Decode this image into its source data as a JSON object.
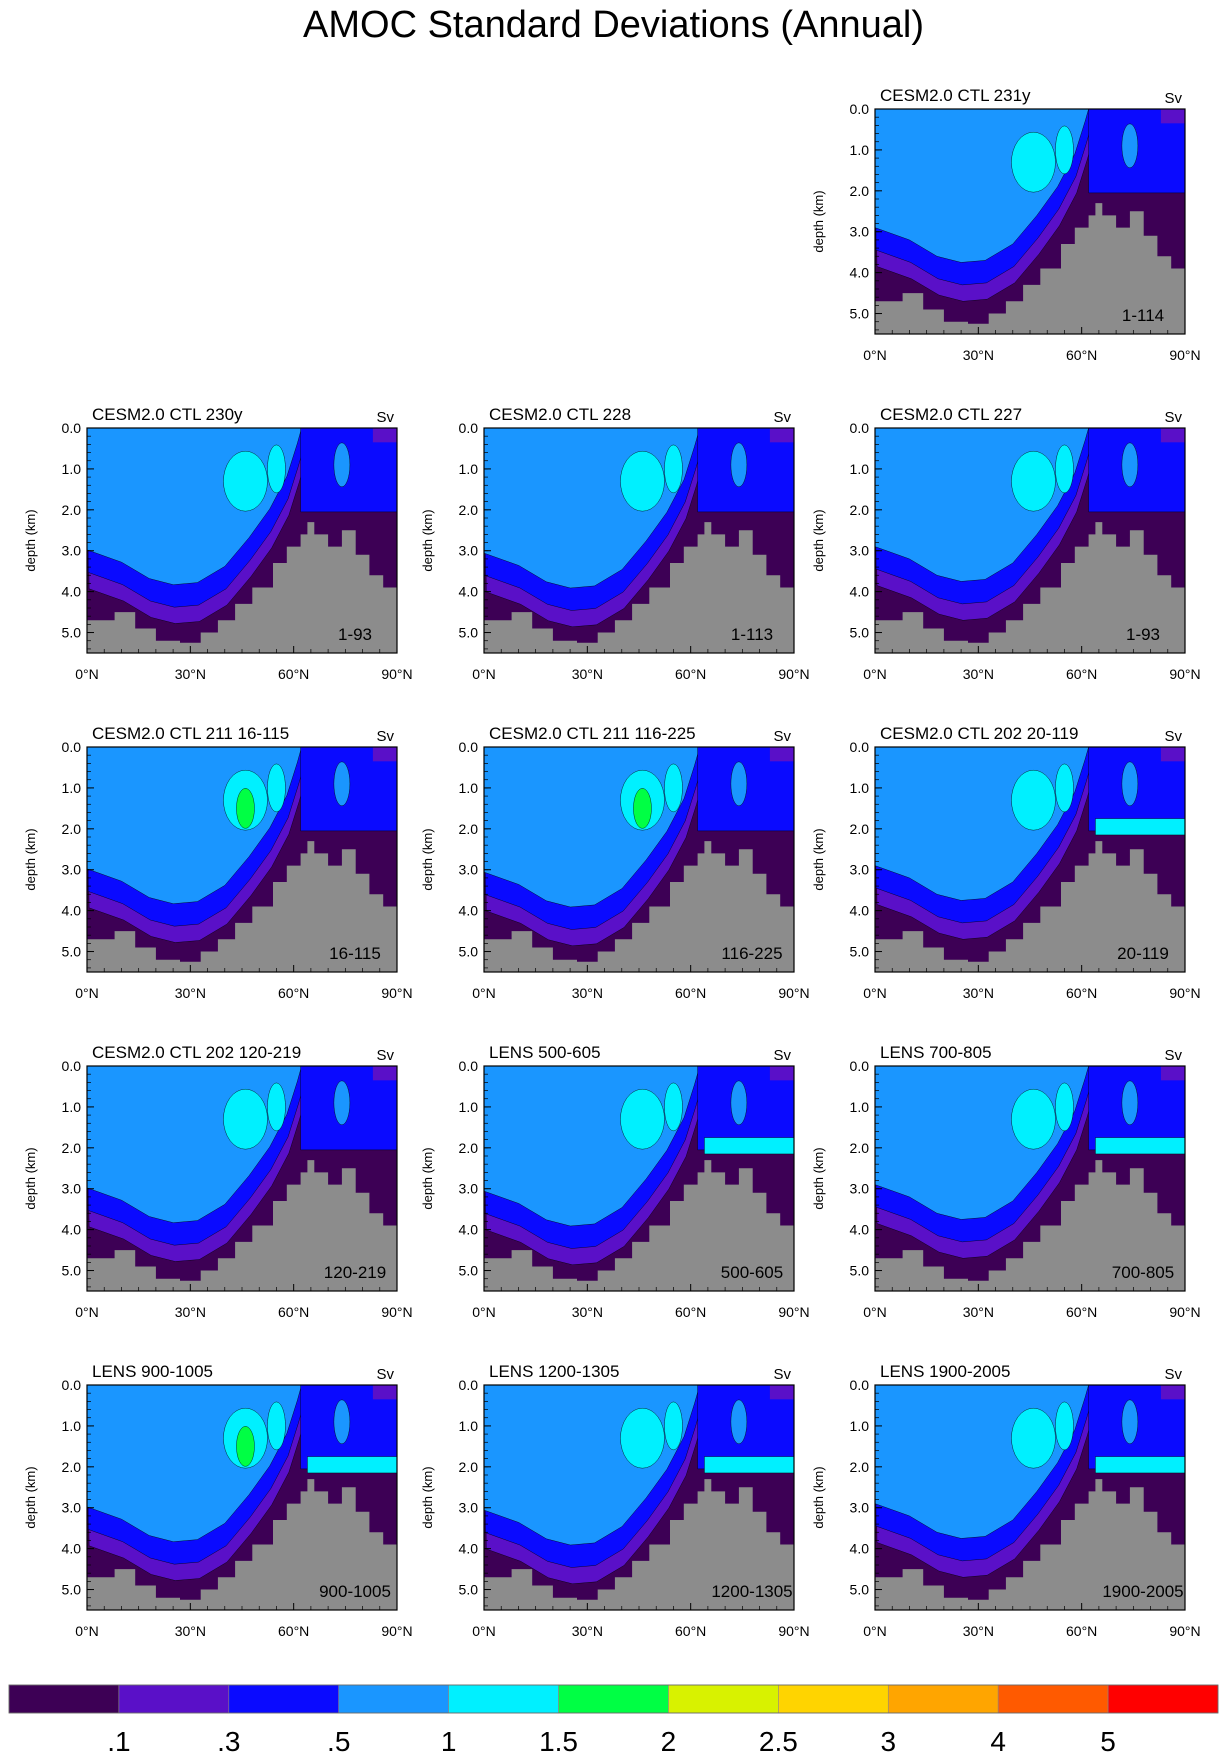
{
  "title": "AMOC Standard Deviations (Annual)",
  "chart_data": {
    "type": "contour",
    "ylabel": "depth (km)",
    "units": "Sv",
    "x_ticks": [
      "0°N",
      "30°N",
      "60°N",
      "90°N"
    ],
    "x_range": [
      0,
      90
    ],
    "y_ticks": [
      "0.0",
      "1.0",
      "2.0",
      "3.0",
      "4.0",
      "5.0"
    ],
    "y_range": [
      0,
      5.5
    ],
    "land_color": "#8c8c8c",
    "panels": [
      {
        "title": "CESM2.0 CTL 231y",
        "range": "1-114",
        "row": 0,
        "col": 2,
        "max_level": 4,
        "nh_band": 3
      },
      {
        "title": "CESM2.0 CTL 230y",
        "range": "1-93",
        "row": 1,
        "col": 0,
        "max_level": 4,
        "nh_band": 3
      },
      {
        "title": "CESM2.0 CTL 228",
        "range": "1-113",
        "row": 1,
        "col": 1,
        "max_level": 4,
        "nh_band": 3
      },
      {
        "title": "CESM2.0 CTL 227",
        "range": "1-93",
        "row": 1,
        "col": 2,
        "max_level": 4,
        "nh_band": 3
      },
      {
        "title": "CESM2.0 CTL 211 16-115",
        "range": "16-115",
        "row": 2,
        "col": 0,
        "max_level": 5,
        "nh_band": 3
      },
      {
        "title": "CESM2.0 CTL 211 116-225",
        "range": "116-225",
        "row": 2,
        "col": 1,
        "max_level": 5,
        "nh_band": 3
      },
      {
        "title": "CESM2.0 CTL 202 20-119",
        "range": "20-119",
        "row": 2,
        "col": 2,
        "max_level": 4,
        "nh_band": 4
      },
      {
        "title": "CESM2.0 CTL 202 120-219",
        "range": "120-219",
        "row": 3,
        "col": 0,
        "max_level": 4,
        "nh_band": 3
      },
      {
        "title": "LENS 500-605",
        "range": "500-605",
        "row": 3,
        "col": 1,
        "max_level": 4,
        "nh_band": 4
      },
      {
        "title": "LENS 700-805",
        "range": "700-805",
        "row": 3,
        "col": 2,
        "max_level": 4,
        "nh_band": 4
      },
      {
        "title": "LENS 900-1005",
        "range": "900-1005",
        "row": 4,
        "col": 0,
        "max_level": 5,
        "nh_band": 4
      },
      {
        "title": "LENS 1200-1305",
        "range": "1200-1305",
        "row": 4,
        "col": 1,
        "max_level": 4,
        "nh_band": 4
      },
      {
        "title": "LENS 1900-2005",
        "range": "1900-2005",
        "row": 4,
        "col": 2,
        "max_level": 4,
        "nh_band": 4
      }
    ],
    "colorbar": {
      "colors": [
        "#3d0055",
        "#5a10c8",
        "#0a0aff",
        "#1a96ff",
        "#00f0ff",
        "#00ff44",
        "#d8f200",
        "#ffd400",
        "#ffa500",
        "#ff5a00",
        "#ff0000"
      ],
      "labels": [
        ".1",
        ".3",
        ".5",
        "1",
        "1.5",
        "2",
        "2.5",
        "3",
        "4",
        "5"
      ]
    }
  }
}
